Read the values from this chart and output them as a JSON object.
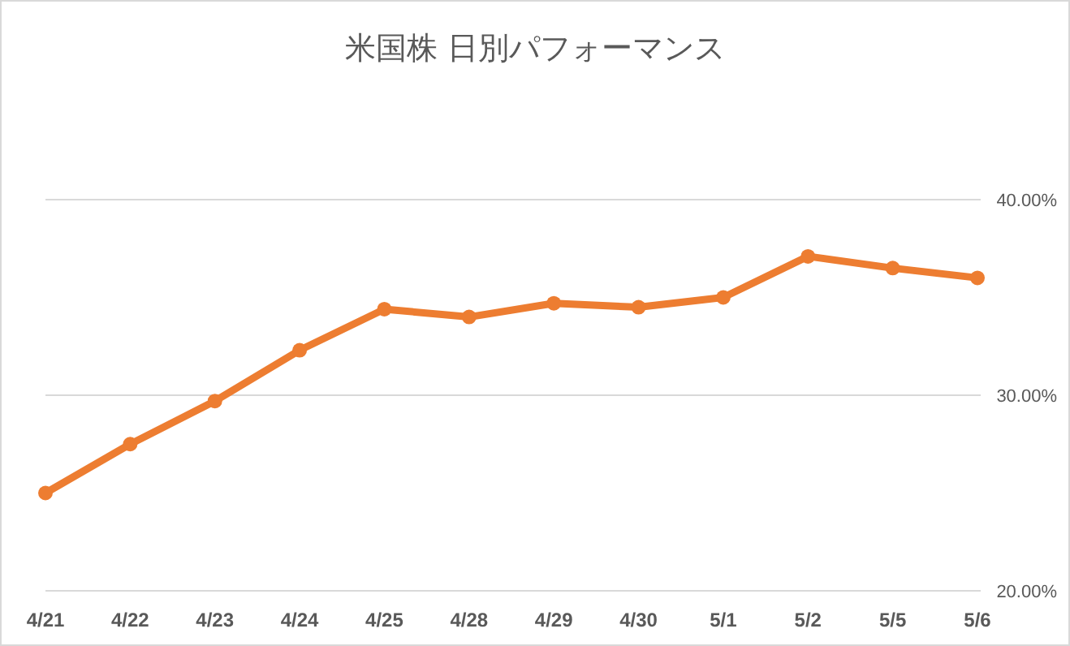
{
  "chart_data": {
    "type": "line",
    "title": "米国株 日別パフォーマンス",
    "categories": [
      "4/21",
      "4/22",
      "4/23",
      "4/24",
      "4/25",
      "4/28",
      "4/29",
      "4/30",
      "5/1",
      "5/2",
      "5/5",
      "5/6"
    ],
    "series": [
      {
        "color": "#ed7d31",
        "values": [
          25.0,
          27.5,
          29.7,
          32.3,
          34.4,
          34.0,
          34.7,
          34.5,
          35.0,
          37.1,
          36.5,
          36.0
        ]
      }
    ],
    "ylim": [
      20,
      40
    ],
    "yticks": [
      {
        "value": 20,
        "label": "20.00%"
      },
      {
        "value": 30,
        "label": "30.00%"
      },
      {
        "value": 40,
        "label": "40.00%"
      }
    ],
    "grid": "y",
    "marker": "circle"
  }
}
